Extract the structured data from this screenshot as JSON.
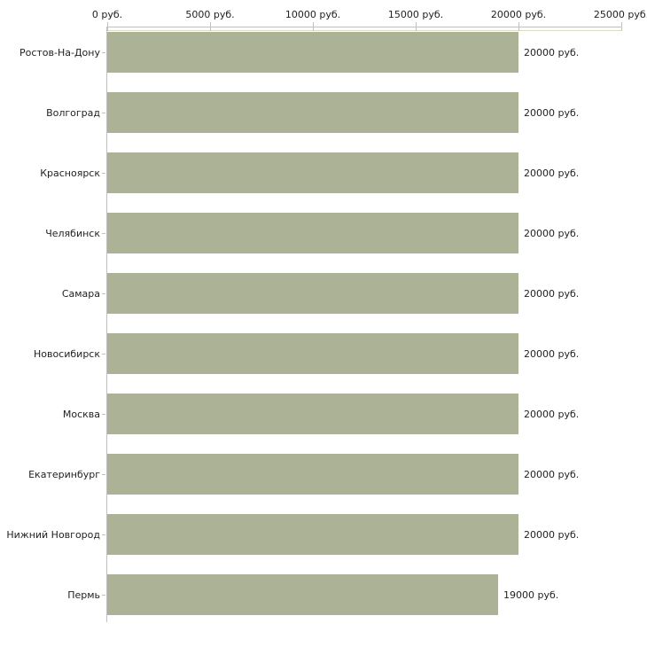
{
  "chart_data": {
    "type": "bar",
    "orientation": "horizontal",
    "title": "",
    "xlabel": "",
    "ylabel": "",
    "unit": "руб.",
    "categories": [
      "Ростов-На-Дону",
      "Волгоград",
      "Красноярск",
      "Челябинск",
      "Самара",
      "Новосибирск",
      "Москва",
      "Екатеринбург",
      "Нижний Новгород",
      "Пермь"
    ],
    "values": [
      20000,
      20000,
      20000,
      20000,
      20000,
      20000,
      20000,
      20000,
      20000,
      19000
    ],
    "value_labels": [
      "20000 руб.",
      "20000 руб.",
      "20000 руб.",
      "20000 руб.",
      "20000 руб.",
      "20000 руб.",
      "20000 руб.",
      "20000 руб.",
      "20000 руб.",
      "19000 руб."
    ],
    "x_ticks": [
      0,
      5000,
      10000,
      15000,
      20000,
      25000
    ],
    "x_tick_labels": [
      "0 руб.",
      "5000 руб.",
      "10000 руб.",
      "15000 руб.",
      "20000 руб.",
      "25000 руб."
    ],
    "xlim": [
      0,
      25000
    ],
    "grid": false,
    "legend_position": "none",
    "colors": {
      "bar": "#acb296",
      "tick": "#c6c69c",
      "axis_line": "#c0c0c0",
      "axis_subline": "#dcdcc2",
      "text": "#222222",
      "background": "#ffffff"
    }
  }
}
